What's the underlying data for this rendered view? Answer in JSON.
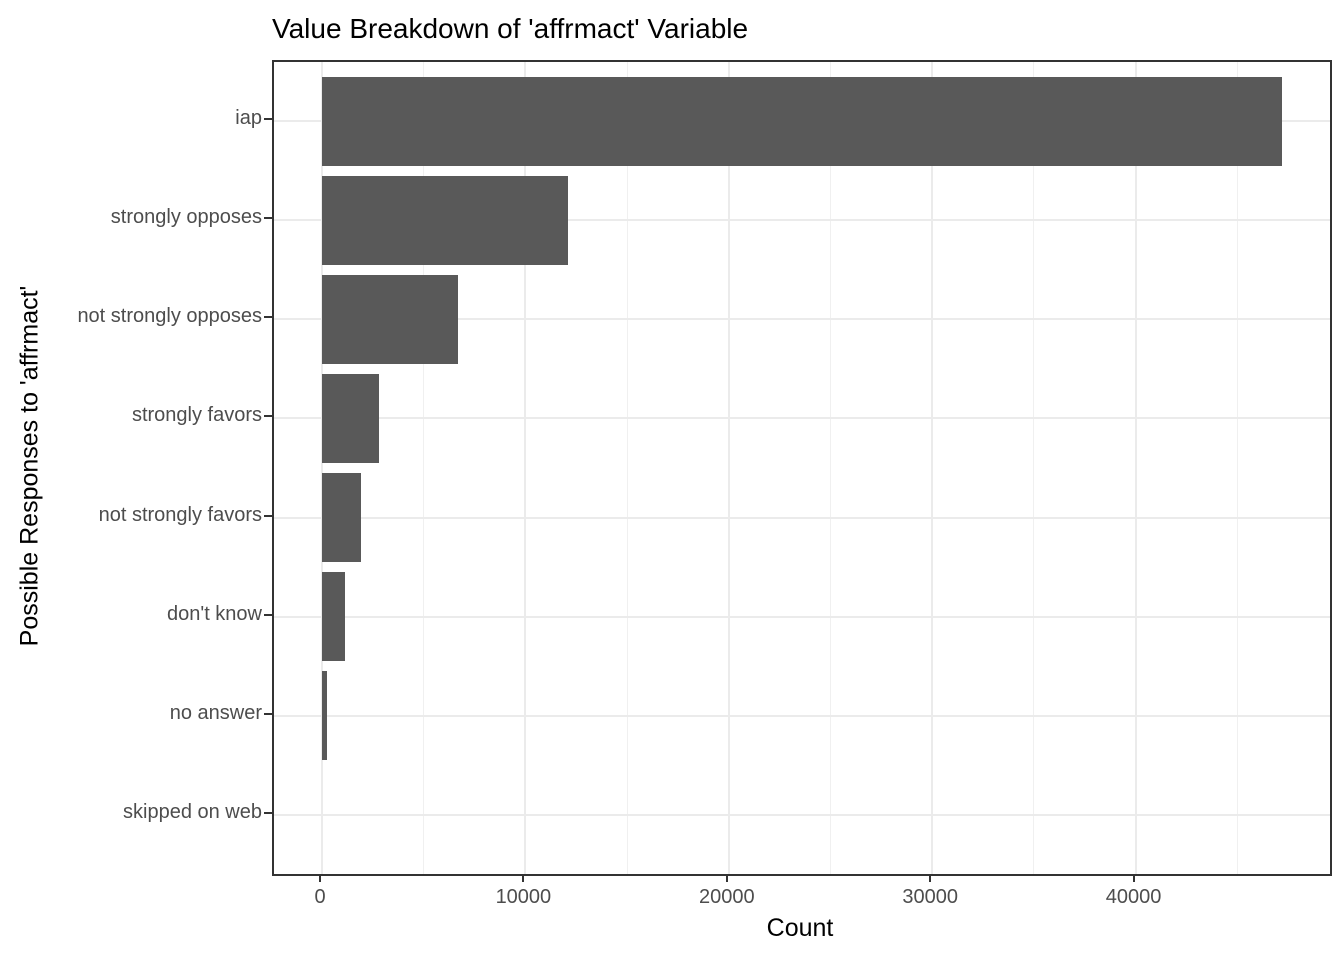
{
  "chart": {
    "title": "Value Breakdown of 'affrmact' Variable",
    "xlabel": "Count",
    "ylabel": "Possible Responses to 'affrmact'"
  },
  "chart_data": {
    "type": "bar",
    "orientation": "horizontal",
    "title": "Value Breakdown of 'affrmact' Variable",
    "xlabel": "Count",
    "ylabel": "Possible Responses to 'affrmact'",
    "categories": [
      "iap",
      "strongly opposes",
      "not strongly opposes",
      "strongly favors",
      "not strongly favors",
      "don't know",
      "no answer",
      "skipped on web"
    ],
    "values": [
      47200,
      12100,
      6700,
      2800,
      1900,
      1150,
      230,
      0
    ],
    "x_ticks": [
      0,
      10000,
      20000,
      30000,
      40000
    ],
    "x_tick_labels": [
      "0",
      "10000",
      "20000",
      "30000",
      "40000"
    ],
    "x_minor_ticks": [
      5000,
      15000,
      25000,
      35000,
      45000
    ],
    "xlim": [
      0,
      47200
    ],
    "grid": true,
    "legend": false,
    "theme": {
      "bar_color": "#595959",
      "panel_border_color": "#333333",
      "grid_major_color": "#ebebeb",
      "grid_minor_color": "#f0f0f0",
      "tick_color": "#333333",
      "tick_label_color": "#4d4d4d",
      "text_color": "#000000",
      "background": "#ffffff"
    }
  }
}
